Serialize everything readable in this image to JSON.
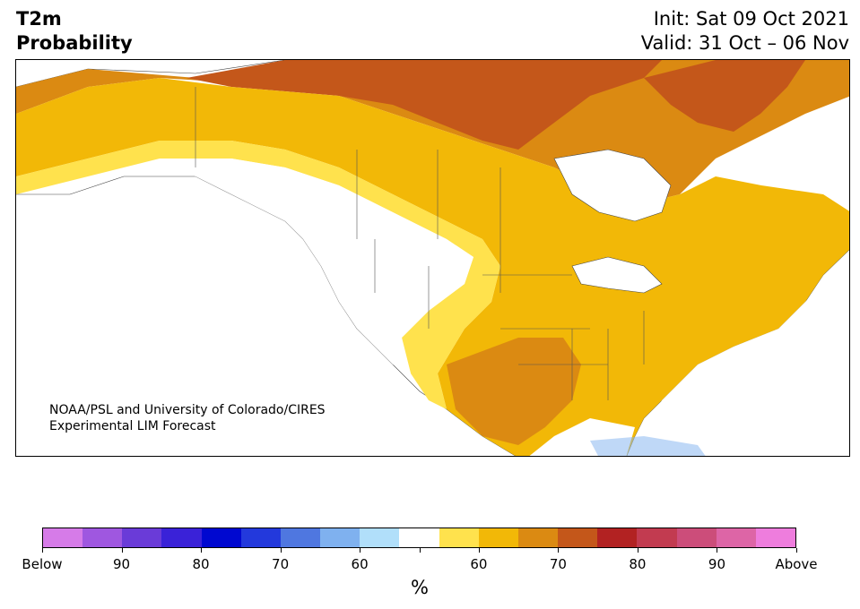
{
  "header": {
    "title_line1": "T2m",
    "title_line2": "Probability",
    "init": "Init: Sat 09 Oct 2021",
    "valid": "Valid: 31 Oct – 06 Nov"
  },
  "map": {
    "credit_line1": "NOAA/PSL and University of Colorado/CIRES",
    "credit_line2": "Experimental LIM Forecast"
  },
  "colorbar": {
    "colors": [
      "#d67be8",
      "#9f57e0",
      "#6a3bd8",
      "#3a22d8",
      "#0008d0",
      "#2339dc",
      "#4f77e0",
      "#7fb1ef",
      "#b1dffa",
      "#ffffff",
      "#ffe24d",
      "#f2b807",
      "#db8a12",
      "#c4571a",
      "#b22222",
      "#c23b50",
      "#cc4d7a",
      "#dd65a6",
      "#ee7ddd"
    ],
    "tick_labels": [
      "Below",
      "90",
      "80",
      "70",
      "60",
      "",
      "60",
      "70",
      "80",
      "90",
      "Above"
    ],
    "units": "%"
  }
}
